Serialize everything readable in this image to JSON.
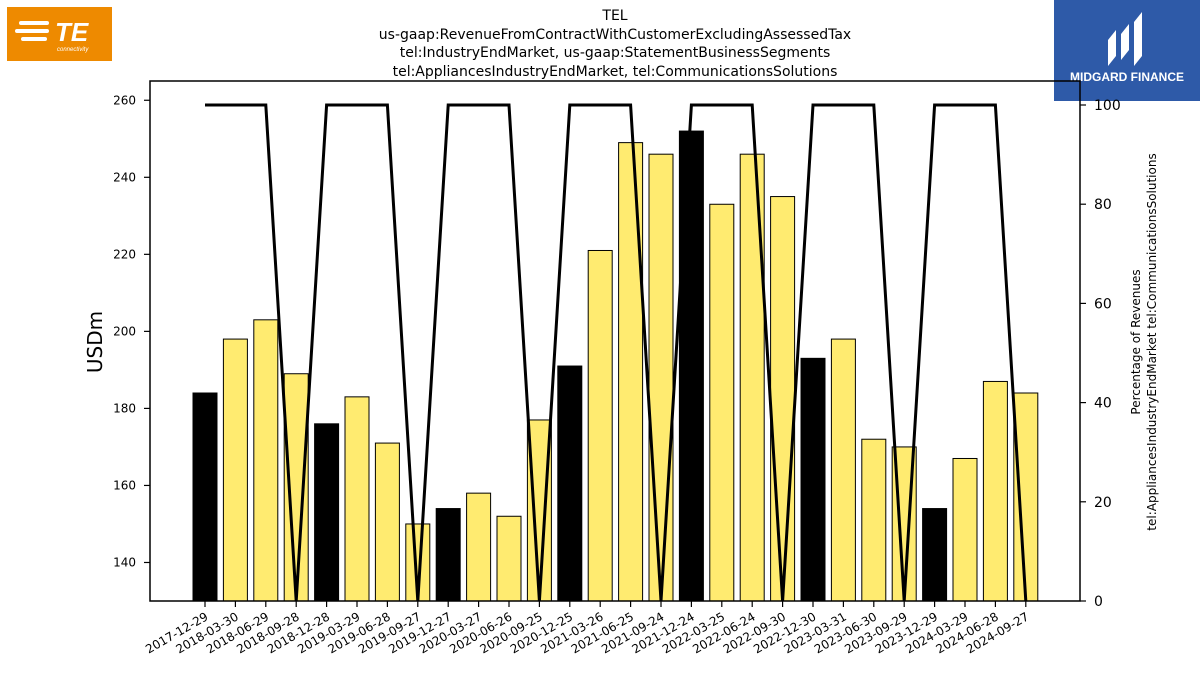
{
  "header": {
    "title_lines": [
      "TEL",
      "us-gaap:RevenueFromContractWithCustomerExcludingAssessedTax",
      "tel:IndustryEndMarket, us-gaap:StatementBusinessSegments",
      "tel:AppliancesIndustryEndMarket, tel:CommunicationsSolutions"
    ]
  },
  "logos": {
    "left": {
      "text": "TE",
      "subtext": "connectivity",
      "color": "#ee8a00"
    },
    "right": {
      "text": "MIDGARD FINANCE",
      "color": "#2e5aa8"
    }
  },
  "chart_data": {
    "type": "bar",
    "title": "TEL",
    "ylabel": "USDm",
    "y2label_lines": [
      "Percentage of Revenues",
      "tel:AppliancesIndustryEndMarket tel:CommunicationsSolutions"
    ],
    "ylim": [
      130,
      265
    ],
    "yticks": [
      140,
      160,
      180,
      200,
      220,
      240,
      260
    ],
    "y2lim": [
      0,
      100
    ],
    "y2ticks": [
      0,
      20,
      40,
      60,
      80,
      100
    ],
    "categories": [
      "2017-12-29",
      "2018-03-30",
      "2018-06-29",
      "2018-09-28",
      "2018-12-28",
      "2019-03-29",
      "2019-06-28",
      "2019-09-27",
      "2019-12-27",
      "2020-03-27",
      "2020-06-26",
      "2020-09-25",
      "2020-12-25",
      "2021-03-26",
      "2021-06-25",
      "2021-09-24",
      "2021-12-24",
      "2022-03-25",
      "2022-06-24",
      "2022-09-30",
      "2022-12-30",
      "2023-03-31",
      "2023-06-30",
      "2023-09-29",
      "2023-12-29",
      "2024-03-29",
      "2024-06-28",
      "2024-09-27"
    ],
    "values": [
      184,
      198,
      203,
      189,
      176,
      183,
      171,
      150,
      154,
      158,
      152,
      177,
      191,
      221,
      249,
      246,
      252,
      233,
      246,
      235,
      193,
      198,
      172,
      170,
      154,
      167,
      187,
      184
    ],
    "bar_highlight": [
      true,
      false,
      false,
      false,
      true,
      false,
      false,
      false,
      true,
      false,
      false,
      false,
      true,
      false,
      false,
      false,
      true,
      false,
      false,
      false,
      true,
      false,
      false,
      false,
      true,
      false,
      false,
      false
    ],
    "line_values": [
      100,
      100,
      100,
      0,
      100,
      100,
      100,
      0,
      100,
      100,
      100,
      0,
      100,
      100,
      100,
      0,
      100,
      100,
      100,
      0,
      100,
      100,
      100,
      0,
      100,
      100,
      100,
      0
    ],
    "colors": {
      "bar": "#ffeb70",
      "bar_highlight": "#000000",
      "line": "#000000"
    },
    "grid": false
  }
}
